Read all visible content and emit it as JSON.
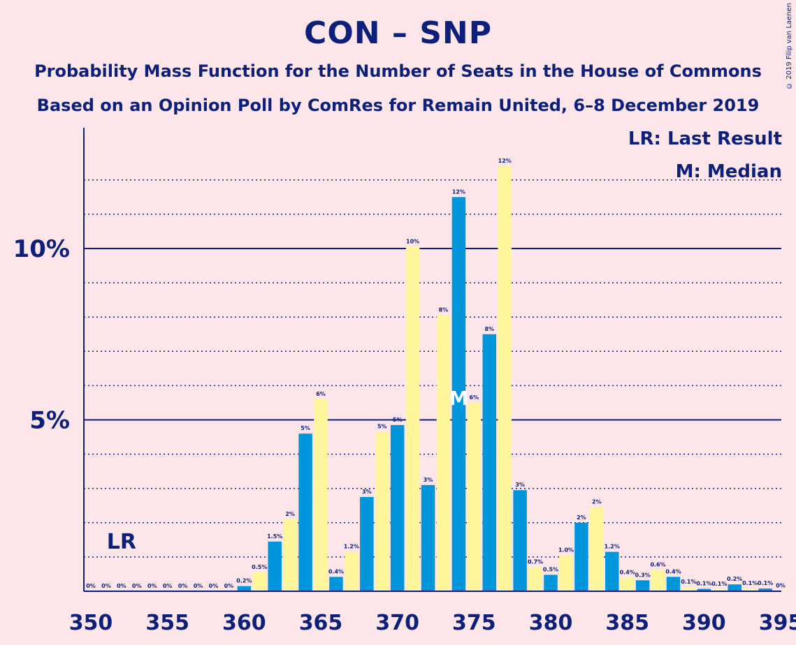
{
  "title": "CON – SNP",
  "subtitle1": "Probability Mass Function for the Number of Seats in the House of Commons",
  "subtitle2": "Based on an Opinion Poll by ComRes for Remain United, 6–8 December 2019",
  "copyright": "© 2019 Filip van Laenen",
  "legend": {
    "last_result": "LR: Last Result",
    "median": "M: Median"
  },
  "colors": {
    "background": "#fde6e9",
    "blue": "#0096dc",
    "yellow": "#fff59b",
    "text": "#0c1f7a"
  },
  "chart_data": {
    "type": "bar",
    "x": [
      350,
      351,
      352,
      353,
      354,
      355,
      356,
      357,
      358,
      359,
      360,
      361,
      362,
      363,
      364,
      365,
      366,
      367,
      368,
      369,
      370,
      371,
      372,
      373,
      374,
      375,
      376,
      377,
      378,
      379,
      380,
      381,
      382,
      383,
      384,
      385,
      386,
      387,
      388,
      389,
      390,
      391,
      392,
      393,
      394,
      395
    ],
    "values": [
      0,
      0,
      0,
      0,
      0,
      0,
      0,
      0,
      0,
      0,
      0.15,
      0.55,
      1.45,
      2.1,
      4.6,
      5.6,
      0.42,
      1.15,
      2.75,
      4.65,
      4.85,
      10.05,
      3.1,
      8.05,
      11.5,
      5.5,
      7.5,
      12.4,
      2.95,
      0.7,
      0.48,
      1.05,
      2.0,
      2.45,
      1.15,
      0.4,
      0.32,
      0.62,
      0.42,
      0.12,
      0.07,
      0.06,
      0.2,
      0.08,
      0.08,
      0.01
    ],
    "data_labels": [
      "0%",
      "0%",
      "0%",
      "0%",
      "0%",
      "0%",
      "0%",
      "0%",
      "0%",
      "0%",
      "0.2%",
      "0.5%",
      "1.5%",
      "2%",
      "5%",
      "6%",
      "0.4%",
      "1.2%",
      "3%",
      "5%",
      "5%",
      "10%",
      "3%",
      "8%",
      "12%",
      "6%",
      "8%",
      "12%",
      "3%",
      "0.7%",
      "0.5%",
      "1.0%",
      "2%",
      "2%",
      "1.2%",
      "0.4%",
      "0.3%",
      "0.6%",
      "0.4%",
      "0.1%",
      "0.1%",
      "0.1%",
      "0.2%",
      "0.1%",
      "0.1%",
      "0%"
    ],
    "xticks": [
      "350",
      "355",
      "360",
      "365",
      "370",
      "375",
      "380",
      "385",
      "390",
      "395"
    ],
    "yticks": [
      "5%",
      "10%"
    ],
    "ylim": [
      0,
      13.5
    ],
    "xlim": [
      350,
      395
    ],
    "last_result": 352,
    "last_result_label": "LR",
    "median": 374,
    "median_label": "M",
    "grid": "dotted every 1%, solid at 5% and 10%"
  }
}
